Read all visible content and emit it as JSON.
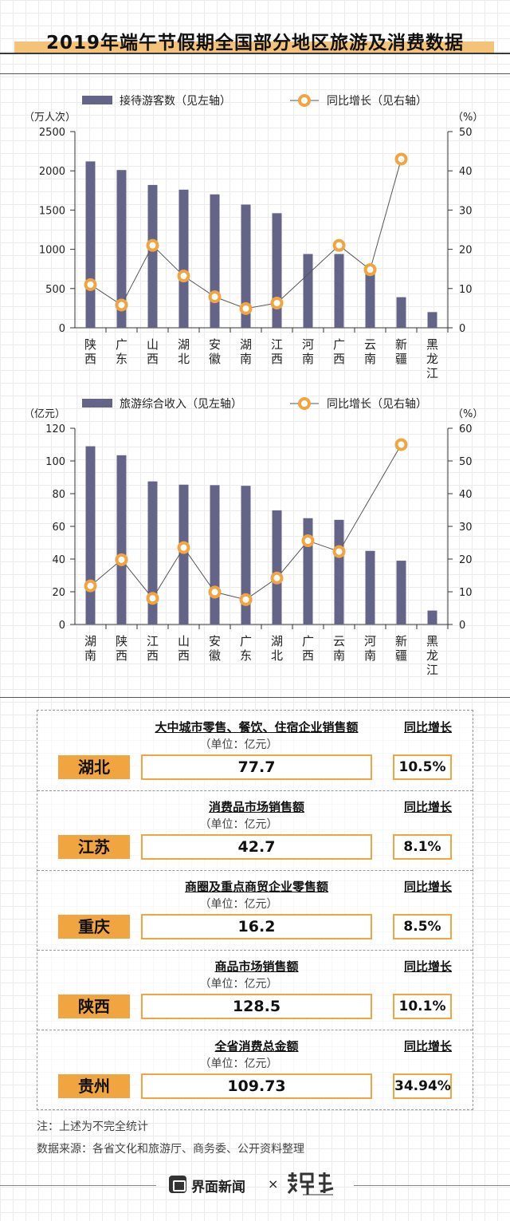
{
  "title": "2019年端午节假期全国部分地区旅游及消费数据",
  "chart_data": [
    {
      "type": "bar",
      "legend": {
        "bar_label": "接待游客数（见左轴）",
        "line_label": "同比增长（见右轴）",
        "placement": "top"
      },
      "y_left_label": "（万人次）",
      "y_right_label": "（%）",
      "y_left_ticks": [
        "2500",
        "2000",
        "1500",
        "1000",
        "500",
        "0"
      ],
      "y_right_ticks": [
        "50",
        "40",
        "30",
        "20",
        "10",
        "0"
      ],
      "ylim_left": [
        0,
        2500
      ],
      "ylim_right": [
        0,
        50
      ],
      "categories": [
        "陕西",
        "广东",
        "山西",
        "湖北",
        "安徽",
        "湖南",
        "江西",
        "河南",
        "广西",
        "云南",
        "新疆",
        "黑龙江"
      ],
      "series": [
        {
          "name": "接待游客数（见左轴）",
          "type": "bar",
          "axis": "left",
          "values": [
            2120,
            2010,
            1820,
            1760,
            1700,
            1570,
            1460,
            940,
            940,
            800,
            390,
            200
          ]
        },
        {
          "name": "同比增长（见右轴）",
          "type": "line",
          "axis": "right",
          "values": [
            11.0,
            5.8,
            21.0,
            13.2,
            7.9,
            4.9,
            6.3,
            null,
            21.0,
            14.8,
            43.0,
            null
          ]
        }
      ],
      "colors": {
        "bar": "#646488",
        "line": "#555555",
        "marker": "#f0a540"
      }
    },
    {
      "type": "bar",
      "legend": {
        "bar_label": "旅游综合收入（见左轴）",
        "line_label": "同比增长（见右轴）",
        "placement": "top"
      },
      "y_left_label": "（亿元）",
      "y_right_label": "（%）",
      "y_left_ticks": [
        "120",
        "100",
        "80",
        "60",
        "40",
        "20",
        "0"
      ],
      "y_right_ticks": [
        "60",
        "50",
        "40",
        "30",
        "20",
        "10",
        "0"
      ],
      "ylim_left": [
        0,
        120
      ],
      "ylim_right": [
        0,
        60
      ],
      "categories": [
        "湖南",
        "陕西",
        "江西",
        "山西",
        "安徽",
        "广东",
        "湖北",
        "广西",
        "云南",
        "河南",
        "新疆",
        "黑龙江"
      ],
      "series": [
        {
          "name": "旅游综合收入（见左轴）",
          "type": "bar",
          "axis": "left",
          "values": [
            109,
            103.5,
            87.5,
            85.5,
            85.2,
            84.8,
            69.8,
            65,
            64,
            45,
            39,
            8.5
          ]
        },
        {
          "name": "同比增长（见右轴）",
          "type": "line",
          "axis": "right",
          "values": [
            11.8,
            19.8,
            8.0,
            23.5,
            9.9,
            7.6,
            14.2,
            25.6,
            22.3,
            null,
            55.0,
            null
          ]
        }
      ],
      "colors": {
        "bar": "#646488",
        "line": "#555555",
        "marker": "#f0a540"
      }
    }
  ],
  "panels": [
    {
      "province": "湖北",
      "metric": "大中城市零售、餐饮、住宿企业销售额",
      "unit": "（单位：亿元）",
      "growth_head": "同比增长",
      "value": "77.7",
      "growth": "10.5%"
    },
    {
      "province": "江苏",
      "metric": "消费品市场销售额",
      "unit": "（单位：亿元）",
      "growth_head": "同比增长",
      "value": "42.7",
      "growth": "8.1%"
    },
    {
      "province": "重庆",
      "metric": "商圈及重点商贸企业零售额",
      "unit": "（单位：亿元）",
      "growth_head": "同比增长",
      "value": "16.2",
      "growth": "8.5%"
    },
    {
      "province": "陕西",
      "metric": "商品市场销售额",
      "unit": "（单位：亿元）",
      "growth_head": "同比增长",
      "value": "128.5",
      "growth": "10.1%"
    },
    {
      "province": "贵州",
      "metric": "全省消费总金额",
      "unit": "（单位：亿元）",
      "growth_head": "同比增长",
      "value": "109.73",
      "growth": "34.94%"
    }
  ],
  "notes": {
    "note": "注：上述为不完全统计",
    "source": "数据来源：各省文化和旅游厅、商务委、公开资料整理"
  },
  "footer": {
    "brand": "界面新闻",
    "times": "×",
    "partner_logo_name": "data-wine-logo"
  }
}
